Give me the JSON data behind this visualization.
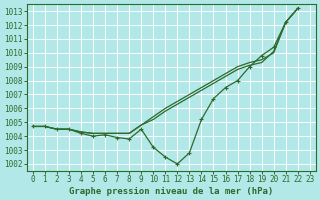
{
  "background_color": "#b3e8e8",
  "grid_color": "#ffffff",
  "line_color": "#2d6a2d",
  "ylim": [
    1001.5,
    1013.5
  ],
  "yticks": [
    1002,
    1003,
    1004,
    1005,
    1006,
    1007,
    1008,
    1009,
    1010,
    1011,
    1012,
    1013
  ],
  "xlim": [
    -0.5,
    23.5
  ],
  "xticks": [
    0,
    1,
    2,
    3,
    4,
    5,
    6,
    7,
    8,
    9,
    10,
    11,
    12,
    13,
    14,
    15,
    16,
    17,
    18,
    19,
    20,
    21,
    22,
    23
  ],
  "xlabel": "Graphe pression niveau de la mer (hPa)",
  "series": [
    {
      "x": [
        0,
        1,
        2,
        3,
        4,
        5,
        6,
        7,
        8,
        9,
        10,
        11,
        12,
        13,
        14,
        15,
        16,
        17,
        18,
        19,
        20,
        21,
        22
      ],
      "y": [
        1004.7,
        1004.7,
        1004.5,
        1004.5,
        1004.2,
        1004.0,
        1004.1,
        1003.9,
        1003.8,
        1004.5,
        1003.2,
        1002.5,
        1002.0,
        1002.8,
        1005.2,
        1006.7,
        1007.5,
        1008.0,
        1009.0,
        1009.8,
        1010.4,
        1012.2,
        1013.2
      ],
      "marker": true
    },
    {
      "x": [
        0,
        1,
        2,
        3,
        4,
        5,
        6,
        7,
        8,
        9,
        10,
        11,
        12,
        13,
        14,
        15,
        16,
        17,
        18,
        19,
        20,
        21,
        22
      ],
      "y": [
        1004.7,
        1004.7,
        1004.5,
        1004.5,
        1004.3,
        1004.2,
        1004.2,
        1004.2,
        1004.2,
        1004.8,
        1005.2,
        1005.8,
        1006.3,
        1006.8,
        1007.3,
        1007.8,
        1008.3,
        1008.8,
        1009.1,
        1009.3,
        1010.1,
        1012.2,
        1013.2
      ],
      "marker": false
    },
    {
      "x": [
        0,
        1,
        2,
        3,
        4,
        5,
        6,
        7,
        8,
        9,
        10,
        11,
        12,
        13,
        14,
        15,
        16,
        17,
        18,
        19,
        20,
        21,
        22
      ],
      "y": [
        1004.7,
        1004.7,
        1004.5,
        1004.5,
        1004.3,
        1004.2,
        1004.2,
        1004.2,
        1004.2,
        1004.8,
        1005.4,
        1006.0,
        1006.5,
        1007.0,
        1007.5,
        1008.0,
        1008.5,
        1009.0,
        1009.3,
        1009.5,
        1010.0,
        1012.2,
        1013.2
      ],
      "marker": false
    }
  ]
}
